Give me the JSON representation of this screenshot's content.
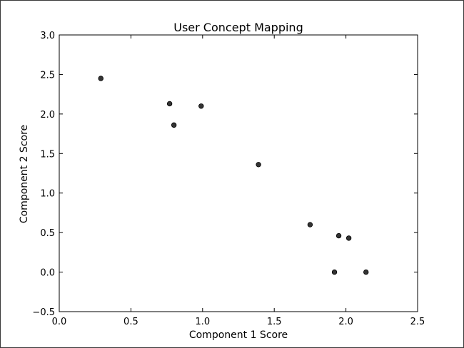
{
  "chart_data": {
    "type": "scatter",
    "title": "User Concept Mapping",
    "xlabel": "Component 1 Score",
    "ylabel": "Component 2 Score",
    "xlim": [
      0.0,
      2.5
    ],
    "ylim": [
      -0.5,
      3.0
    ],
    "xticks": [
      "0.0",
      "0.5",
      "1.0",
      "1.5",
      "2.0",
      "2.5"
    ],
    "yticks": [
      "−0.5",
      "0.0",
      "0.5",
      "1.0",
      "1.5",
      "2.0",
      "2.5",
      "3.0"
    ],
    "grid": false,
    "legend": "none",
    "marker_color": "#333333",
    "points": [
      {
        "x": 0.29,
        "y": 2.45
      },
      {
        "x": 0.77,
        "y": 2.13
      },
      {
        "x": 0.8,
        "y": 1.86
      },
      {
        "x": 0.99,
        "y": 2.1
      },
      {
        "x": 1.39,
        "y": 1.36
      },
      {
        "x": 1.75,
        "y": 0.6
      },
      {
        "x": 1.95,
        "y": 0.46
      },
      {
        "x": 2.02,
        "y": 0.43
      },
      {
        "x": 1.92,
        "y": 0.0
      },
      {
        "x": 2.14,
        "y": 0.0
      }
    ]
  }
}
